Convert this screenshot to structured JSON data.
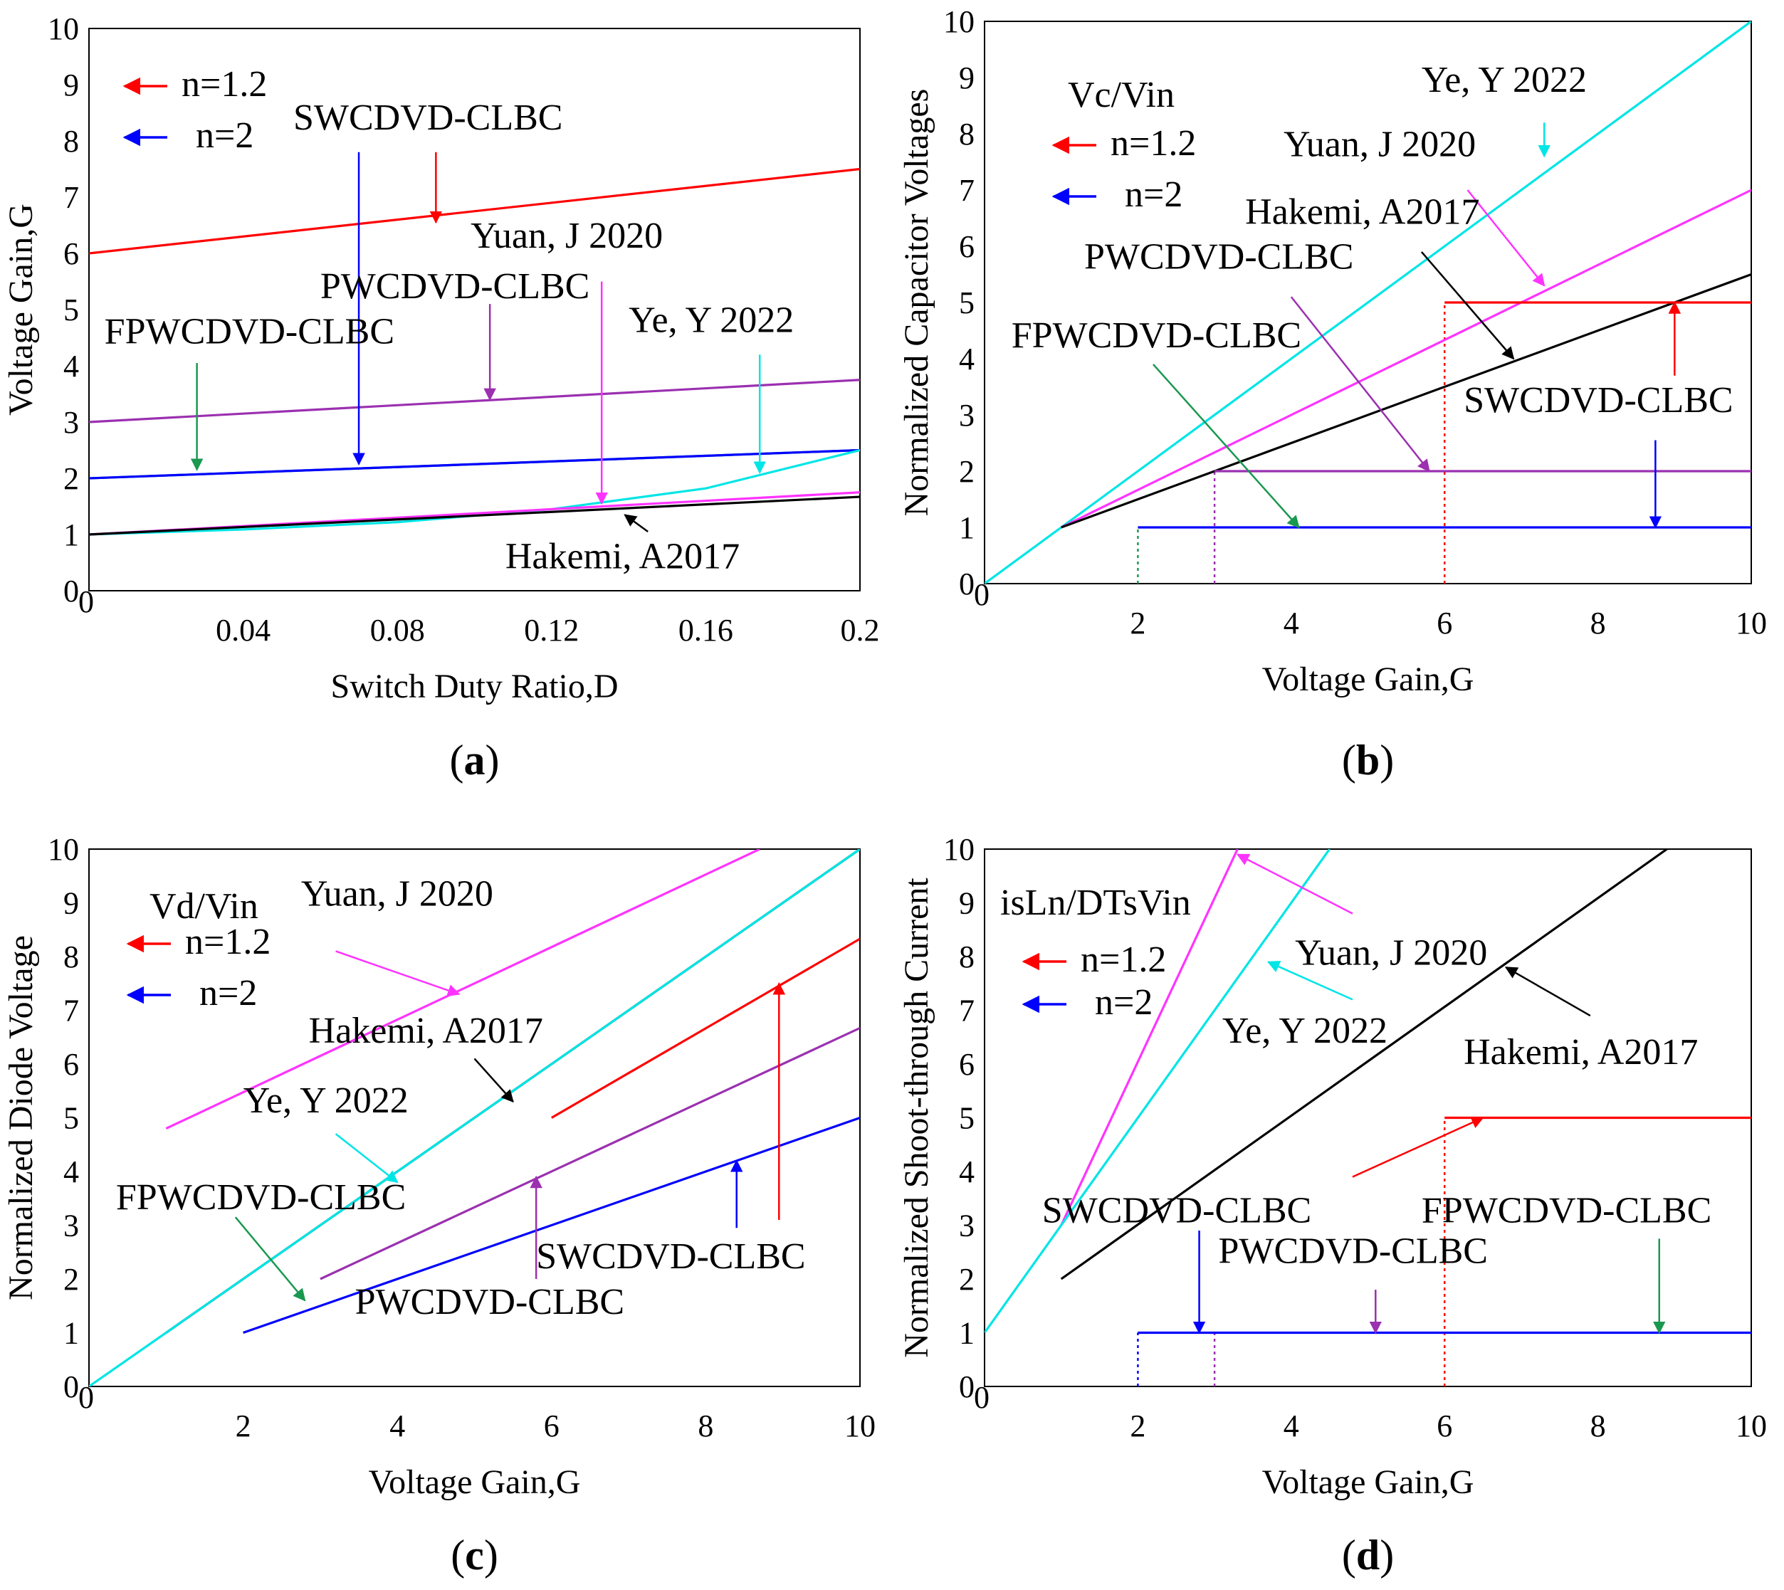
{
  "chart_data": [
    {
      "id": "a",
      "type": "line",
      "panel_label": "a",
      "xlabel": "Switch Duty Ratio,D",
      "ylabel": "Voltage Gain,G",
      "xlim": [
        0,
        0.2
      ],
      "ylim": [
        0,
        10
      ],
      "xticks": [
        {
          "v": 0,
          "t": "0"
        },
        {
          "v": 0.04,
          "t": "0.04"
        },
        {
          "v": 0.08,
          "t": "0.08"
        },
        {
          "v": 0.12,
          "t": "0.12"
        },
        {
          "v": 0.16,
          "t": "0.16"
        },
        {
          "v": 0.2,
          "t": "0.2"
        }
      ],
      "yticks": [
        "0",
        "1",
        "2",
        "3",
        "4",
        "5",
        "6",
        "7",
        "8",
        "9",
        "10"
      ],
      "legend": [
        {
          "label": "n=1.2",
          "color": "#ff0000"
        },
        {
          "label": "n=2",
          "color": "#0000ff"
        }
      ],
      "series": [
        {
          "name": "SWCDVD-CLBC n=1.2",
          "color": "#ff0000",
          "x": [
            0,
            0.2
          ],
          "y": [
            6.0,
            7.5
          ]
        },
        {
          "name": "PWCDVD-CLBC",
          "color": "#9b30b0",
          "x": [
            0,
            0.2
          ],
          "y": [
            3.0,
            3.75
          ]
        },
        {
          "name": "FPWCDVD-CLBC",
          "color": "#1a9850",
          "x": [
            0,
            0.2
          ],
          "y": [
            2.0,
            2.5
          ]
        },
        {
          "name": "SWCDVD-CLBC n=2",
          "color": "#0000ff",
          "x": [
            0,
            0.2
          ],
          "y": [
            2.0,
            2.5
          ]
        },
        {
          "name": "Ye, Y 2022",
          "color": "#00e5e5",
          "x": [
            0,
            0.04,
            0.08,
            0.12,
            0.16,
            0.2
          ],
          "y": [
            1.0,
            1.09,
            1.22,
            1.45,
            1.82,
            2.5
          ]
        },
        {
          "name": "Yuan, J 2020",
          "color": "#ff33ff",
          "x": [
            0,
            0.2
          ],
          "y": [
            1.0,
            1.75
          ]
        },
        {
          "name": "Hakemi, A2017",
          "color": "#000000",
          "x": [
            0,
            0.2
          ],
          "y": [
            1.0,
            1.67
          ]
        }
      ],
      "annotations": [
        {
          "text": "SWCDVD-CLBC",
          "color": "#ff0000",
          "tx": 0.053,
          "ty": 8.2,
          "ax": 0.09,
          "ay": 7.8,
          "hx": 0.09,
          "hy": 6.55
        },
        {
          "text": "",
          "color": "#0000ff",
          "ax": 0.07,
          "ay": 7.8,
          "hx": 0.07,
          "hy": 2.25
        },
        {
          "text": "PWCDVD-CLBC",
          "color": "#9b30b0",
          "tx": 0.06,
          "ty": 5.2,
          "ax": 0.104,
          "ay": 5.1,
          "hx": 0.104,
          "hy": 3.4
        },
        {
          "text": "FPWCDVD-CLBC",
          "color": "#1a9850",
          "tx": 0.004,
          "ty": 4.4,
          "ax": 0.028,
          "ay": 4.05,
          "hx": 0.028,
          "hy": 2.15
        },
        {
          "text": "Yuan, J 2020",
          "color": "#ff33ff",
          "tx": 0.099,
          "ty": 6.1,
          "ax": 0.133,
          "ay": 5.5,
          "hx": 0.133,
          "hy": 1.55
        },
        {
          "text": "Ye, Y 2022",
          "color": "#00e5e5",
          "tx": 0.14,
          "ty": 4.6,
          "ax": 0.174,
          "ay": 4.2,
          "hx": 0.174,
          "hy": 2.1
        },
        {
          "text": "Hakemi, A2017",
          "color": "#000000",
          "tx": 0.108,
          "ty": 0.4,
          "ax": 0.145,
          "ay": 1.05,
          "hx": 0.139,
          "hy": 1.35
        }
      ]
    },
    {
      "id": "b",
      "type": "line",
      "panel_label": "b",
      "xlabel": "Voltage Gain,G",
      "ylabel": "Normalized Capacitor Voltages",
      "subtitle": "Vc/Vin",
      "xlim": [
        0,
        10
      ],
      "ylim": [
        0,
        10
      ],
      "xticks": [
        {
          "v": 0,
          "t": "0"
        },
        {
          "v": 2,
          "t": "2"
        },
        {
          "v": 4,
          "t": "4"
        },
        {
          "v": 6,
          "t": "6"
        },
        {
          "v": 8,
          "t": "8"
        },
        {
          "v": 10,
          "t": "10"
        }
      ],
      "yticks": [
        "0",
        "1",
        "2",
        "3",
        "4",
        "5",
        "6",
        "7",
        "8",
        "9",
        "10"
      ],
      "legend": [
        {
          "label": "n=1.2",
          "color": "#ff0000"
        },
        {
          "label": "n=2",
          "color": "#0000ff"
        }
      ],
      "series": [
        {
          "name": "Ye, Y 2022",
          "color": "#00e5e5",
          "x": [
            0,
            10
          ],
          "y": [
            0,
            10
          ]
        },
        {
          "name": "Yuan, J 2020",
          "color": "#ff33ff",
          "x": [
            1,
            10
          ],
          "y": [
            1,
            7
          ]
        },
        {
          "name": "Hakemi, A2017",
          "color": "#000000",
          "x": [
            1,
            10
          ],
          "y": [
            1,
            5.5
          ]
        },
        {
          "name": "SWCDVD-CLBC n=1.2",
          "color": "#ff0000",
          "x": [
            6,
            10
          ],
          "y": [
            5,
            5
          ]
        },
        {
          "name": "PWCDVD-CLBC",
          "color": "#9b30b0",
          "x": [
            3,
            10
          ],
          "y": [
            2,
            2
          ]
        },
        {
          "name": "SWCDVD-CLBC n=2",
          "color": "#0000ff",
          "x": [
            2,
            10
          ],
          "y": [
            1,
            1
          ]
        }
      ],
      "dotted": [
        {
          "color": "#ff0000",
          "x": 6,
          "y0": 0,
          "y1": 5
        },
        {
          "color": "#9b30b0",
          "x": 3,
          "y0": 0,
          "y1": 2
        },
        {
          "color": "#1a9850",
          "x": 2,
          "y0": 0,
          "y1": 1
        }
      ],
      "annotations": [
        {
          "text": "Ye, Y 2022",
          "color": "#00e5e5",
          "tx": 5.7,
          "ty": 8.75,
          "ax": 7.3,
          "ay": 8.2,
          "hx": 7.3,
          "hy": 7.6
        },
        {
          "text": "Yuan, J 2020",
          "color": "#ff33ff",
          "tx": 3.9,
          "ty": 7.6,
          "ax": 6.3,
          "ay": 7.0,
          "hx": 7.3,
          "hy": 5.3
        },
        {
          "text": "Hakemi, A2017",
          "color": "#000000",
          "tx": 3.4,
          "ty": 6.4,
          "ax": 5.7,
          "ay": 5.9,
          "hx": 6.9,
          "hy": 4.0
        },
        {
          "text": "PWCDVD-CLBC",
          "color": "#9b30b0",
          "tx": 1.3,
          "ty": 5.6,
          "ax": 4.0,
          "ay": 5.1,
          "hx": 5.8,
          "hy": 2.0
        },
        {
          "text": "FPWCDVD-CLBC",
          "color": "#1a9850",
          "tx": 0.35,
          "ty": 4.2,
          "ax": 2.2,
          "ay": 3.9,
          "hx": 4.1,
          "hy": 1.0
        },
        {
          "text": "SWCDVD-CLBC",
          "color": "#0000ff",
          "tx": 6.25,
          "ty": 3.05,
          "ax": 8.75,
          "ay": 2.55,
          "hx": 8.75,
          "hy": 1.0
        },
        {
          "text": "",
          "color": "#ff0000",
          "ax": 9.0,
          "ay": 3.7,
          "hx": 9.0,
          "hy": 5.0
        }
      ]
    },
    {
      "id": "c",
      "type": "line",
      "panel_label": "c",
      "xlabel": "Voltage Gain,G",
      "ylabel": "Normalized Diode Voltage",
      "subtitle": "Vd/Vin",
      "xlim": [
        0,
        10
      ],
      "ylim": [
        0,
        10
      ],
      "xticks": [
        {
          "v": 0,
          "t": "0"
        },
        {
          "v": 2,
          "t": "2"
        },
        {
          "v": 4,
          "t": "4"
        },
        {
          "v": 6,
          "t": "6"
        },
        {
          "v": 8,
          "t": "8"
        },
        {
          "v": 10,
          "t": "10"
        }
      ],
      "yticks": [
        "0",
        "1",
        "2",
        "3",
        "4",
        "5",
        "6",
        "7",
        "8",
        "9",
        "10"
      ],
      "legend": [
        {
          "label": "n=1.2",
          "color": "#ff0000"
        },
        {
          "label": "n=2",
          "color": "#0000ff"
        }
      ],
      "series": [
        {
          "name": "Yuan, J 2020",
          "color": "#ff33ff",
          "x": [
            1,
            8.7
          ],
          "y": [
            4.8,
            10
          ]
        },
        {
          "name": "Hakemi, A2017",
          "color": "#000000",
          "x": [
            1,
            10
          ],
          "y": [
            1,
            10
          ]
        },
        {
          "name": "Ye, Y 2022",
          "color": "#00e5e5",
          "x": [
            0,
            10
          ],
          "y": [
            0,
            10
          ]
        },
        {
          "name": "SWCDVD-CLBC n=1.2",
          "color": "#ff0000",
          "x": [
            6,
            10
          ],
          "y": [
            5.0,
            8.33
          ]
        },
        {
          "name": "PWCDVD-CLBC",
          "color": "#9b30b0",
          "x": [
            3,
            10
          ],
          "y": [
            2.0,
            6.67
          ]
        },
        {
          "name": "SWCDVD-CLBC n=2",
          "color": "#0000ff",
          "x": [
            2,
            10
          ],
          "y": [
            1.0,
            5.0
          ]
        }
      ],
      "annotations": [
        {
          "text": "Yuan, J 2020",
          "color": "#ff33ff",
          "tx": 2.75,
          "ty": 8.95,
          "ax": 3.2,
          "ay": 8.1,
          "hx": 4.8,
          "hy": 7.3
        },
        {
          "text": "Hakemi, A2017",
          "color": "#000000",
          "tx": 2.85,
          "ty": 6.4,
          "ax": 5.0,
          "ay": 6.1,
          "hx": 5.5,
          "hy": 5.3
        },
        {
          "text": "Ye, Y 2022",
          "color": "#00e5e5",
          "tx": 2.0,
          "ty": 5.1,
          "ax": 3.2,
          "ay": 4.7,
          "hx": 4.0,
          "hy": 3.8
        },
        {
          "text": "FPWCDVD-CLBC",
          "color": "#1a9850",
          "tx": 0.35,
          "ty": 3.3,
          "ax": 1.9,
          "ay": 3.15,
          "hx": 2.8,
          "hy": 1.6
        },
        {
          "text": "SWCDVD-CLBC",
          "color": "#0000ff",
          "tx": 5.8,
          "ty": 2.2,
          "ax": 8.4,
          "ay": 2.95,
          "hx": 8.4,
          "hy": 4.2
        },
        {
          "text": "",
          "color": "#ff0000",
          "ax": 8.95,
          "ay": 3.1,
          "hx": 8.95,
          "hy": 7.5
        },
        {
          "text": "PWCDVD-CLBC",
          "color": "#9b30b0",
          "tx": 3.45,
          "ty": 1.35,
          "ax": 5.8,
          "ay": 2.0,
          "hx": 5.8,
          "hy": 3.9
        }
      ]
    },
    {
      "id": "d",
      "type": "line",
      "panel_label": "d",
      "xlabel": "Voltage Gain,G",
      "ylabel": "Normalized Shoot-through Current",
      "subtitle": "isLn/DTsVin",
      "xlim": [
        0,
        10
      ],
      "ylim": [
        0,
        10
      ],
      "xticks": [
        {
          "v": 0,
          "t": "0"
        },
        {
          "v": 2,
          "t": "2"
        },
        {
          "v": 4,
          "t": "4"
        },
        {
          "v": 6,
          "t": "6"
        },
        {
          "v": 8,
          "t": "8"
        },
        {
          "v": 10,
          "t": "10"
        }
      ],
      "yticks": [
        "0",
        "1",
        "2",
        "3",
        "4",
        "5",
        "6",
        "7",
        "8",
        "9",
        "10"
      ],
      "legend": [
        {
          "label": "n=1.2",
          "color": "#ff0000"
        },
        {
          "label": "n=2",
          "color": "#0000ff"
        }
      ],
      "series": [
        {
          "name": "Yuan, J 2020",
          "color": "#ff33ff",
          "x": [
            1,
            3.3
          ],
          "y": [
            3,
            10
          ]
        },
        {
          "name": "Ye, Y 2022",
          "color": "#00e5e5",
          "x": [
            0,
            4.5
          ],
          "y": [
            1,
            10
          ]
        },
        {
          "name": "Hakemi, A2017",
          "color": "#000000",
          "x": [
            1,
            8.9
          ],
          "y": [
            2,
            10
          ]
        },
        {
          "name": "SWCDVD-CLBC n=1.2",
          "color": "#ff0000",
          "x": [
            6,
            10
          ],
          "y": [
            5,
            5
          ]
        },
        {
          "name": "SWCDVD-CLBC n=2",
          "color": "#0000ff",
          "x": [
            2,
            10
          ],
          "y": [
            1,
            1
          ]
        }
      ],
      "dotted": [
        {
          "color": "#0000ff",
          "x": 2,
          "y0": 0,
          "y1": 1
        },
        {
          "color": "#9b30b0",
          "x": 3,
          "y0": 0,
          "y1": 1
        },
        {
          "color": "#ff0000",
          "x": 6,
          "y0": 0,
          "y1": 5
        }
      ],
      "annotations": [
        {
          "text": "Yuan, J 2020",
          "color": "#ff33ff",
          "tx": 4.05,
          "ty": 7.85,
          "ax": 4.8,
          "ay": 8.8,
          "hx": 3.3,
          "hy": 9.9
        },
        {
          "text": "Ye, Y 2022",
          "color": "#00e5e5",
          "tx": 3.1,
          "ty": 6.4,
          "ax": 4.8,
          "ay": 7.2,
          "hx": 3.7,
          "hy": 7.9
        },
        {
          "text": "Hakemi, A2017",
          "color": "#000000",
          "tx": 6.25,
          "ty": 6.0,
          "ax": 7.9,
          "ay": 6.9,
          "hx": 6.8,
          "hy": 7.8
        },
        {
          "text": "SWCDVD-CLBC",
          "color": "#0000ff",
          "tx": 0.75,
          "ty": 3.05,
          "ax": 2.8,
          "ay": 2.9,
          "hx": 2.8,
          "hy": 1.0
        },
        {
          "text": "",
          "color": "#ff0000",
          "ax": 4.8,
          "ay": 3.9,
          "hx": 6.5,
          "hy": 5.0
        },
        {
          "text": "FPWCDVD-CLBC",
          "color": "#1a9850",
          "tx": 5.7,
          "ty": 3.05,
          "ax": 8.8,
          "ay": 2.75,
          "hx": 8.8,
          "hy": 1.0
        },
        {
          "text": "PWCDVD-CLBC",
          "color": "#9b30b0",
          "tx": 3.05,
          "ty": 2.3,
          "ax": 5.1,
          "ay": 1.8,
          "hx": 5.1,
          "hy": 1.0
        }
      ]
    }
  ]
}
